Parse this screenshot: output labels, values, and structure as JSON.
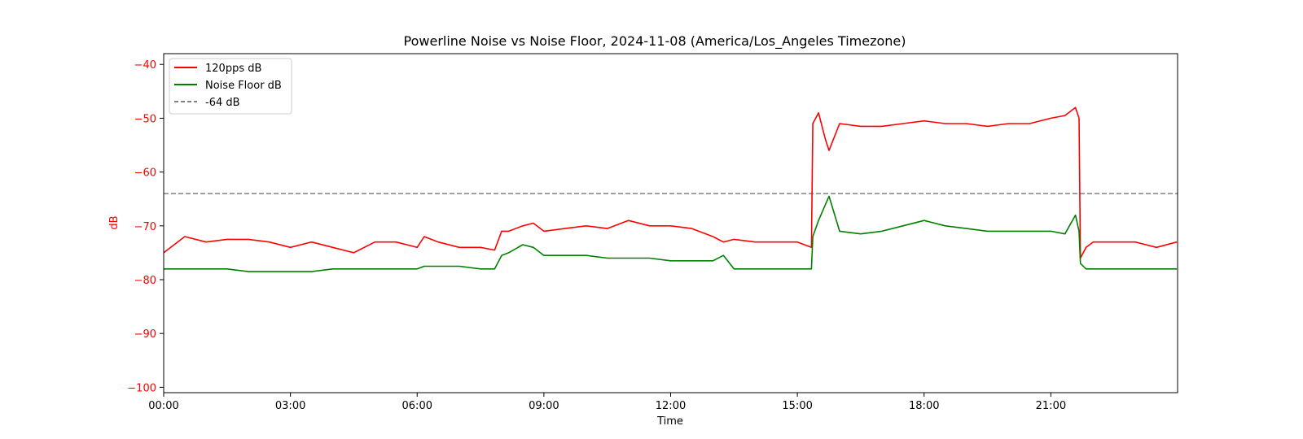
{
  "chart_data": {
    "type": "line",
    "title": "Powerline Noise vs Noise Floor, 2024-11-08 (America/Los_Angeles Timezone)",
    "xlabel": "Time",
    "ylabel": "dB",
    "xlim": [
      "00:00",
      "24:00"
    ],
    "ylim": [
      -101,
      -38
    ],
    "x_ticks": [
      "00:00",
      "03:00",
      "06:00",
      "09:00",
      "12:00",
      "15:00",
      "18:00",
      "21:00"
    ],
    "y_ticks": [
      -40,
      -50,
      -60,
      -70,
      -80,
      -90,
      -100
    ],
    "grid": false,
    "legend_position": "top-left",
    "colors": {
      "signal": "#ff0000",
      "floor": "#008000",
      "threshold": "#808080",
      "ylabel": "#ff0000"
    },
    "threshold": {
      "name": "-64 dB",
      "value": -64
    },
    "series": [
      {
        "name": "120pps dB",
        "color": "#ff0000",
        "x": [
          "00:00",
          "00:30",
          "01:00",
          "01:30",
          "02:00",
          "02:30",
          "03:00",
          "03:30",
          "04:00",
          "04:30",
          "05:00",
          "05:30",
          "06:00",
          "06:10",
          "06:30",
          "07:00",
          "07:30",
          "07:50",
          "08:00",
          "08:10",
          "08:30",
          "08:45",
          "09:00",
          "09:30",
          "10:00",
          "10:30",
          "11:00",
          "11:30",
          "12:00",
          "12:30",
          "13:00",
          "13:15",
          "13:30",
          "14:00",
          "14:30",
          "15:00",
          "15:20",
          "15:22",
          "15:30",
          "15:40",
          "15:45",
          "16:00",
          "16:30",
          "17:00",
          "17:30",
          "18:00",
          "18:30",
          "19:00",
          "19:30",
          "20:00",
          "20:30",
          "21:00",
          "21:20",
          "21:35",
          "21:40",
          "21:42",
          "21:50",
          "22:00",
          "22:30",
          "23:00",
          "23:30",
          "23:59"
        ],
        "values": [
          -75,
          -72,
          -73,
          -72.5,
          -72.5,
          -73,
          -74,
          -73,
          -74,
          -75,
          -73,
          -73,
          -74,
          -72,
          -73,
          -74,
          -74,
          -74.5,
          -71,
          -71,
          -70,
          -69.5,
          -71,
          -70.5,
          -70,
          -70.5,
          -69,
          -70,
          -70,
          -70.5,
          -72,
          -73,
          -72.5,
          -73,
          -73,
          -73,
          -74,
          -51,
          -49,
          -54,
          -56,
          -51,
          -51.5,
          -51.5,
          -51,
          -50.5,
          -51,
          -51,
          -51.5,
          -51,
          -51,
          -50,
          -49.5,
          -48,
          -50,
          -76,
          -74,
          -73,
          -73,
          -73,
          -74,
          -73
        ]
      },
      {
        "name": "Noise Floor dB",
        "color": "#008000",
        "x": [
          "00:00",
          "00:30",
          "01:00",
          "01:30",
          "02:00",
          "02:30",
          "03:00",
          "03:30",
          "04:00",
          "04:30",
          "05:00",
          "05:30",
          "06:00",
          "06:10",
          "06:30",
          "07:00",
          "07:30",
          "07:50",
          "08:00",
          "08:10",
          "08:30",
          "08:45",
          "09:00",
          "09:30",
          "10:00",
          "10:30",
          "11:00",
          "11:30",
          "12:00",
          "12:30",
          "13:00",
          "13:15",
          "13:30",
          "14:00",
          "14:30",
          "15:00",
          "15:20",
          "15:22",
          "15:30",
          "15:40",
          "15:45",
          "16:00",
          "16:30",
          "17:00",
          "17:30",
          "18:00",
          "18:30",
          "19:00",
          "19:30",
          "20:00",
          "20:30",
          "21:00",
          "21:20",
          "21:35",
          "21:40",
          "21:42",
          "21:50",
          "22:00",
          "22:30",
          "23:00",
          "23:30",
          "23:59"
        ],
        "values": [
          -78,
          -78,
          -78,
          -78,
          -78.5,
          -78.5,
          -78.5,
          -78.5,
          -78,
          -78,
          -78,
          -78,
          -78,
          -77.5,
          -77.5,
          -77.5,
          -78,
          -78,
          -75.5,
          -75,
          -73.5,
          -74,
          -75.5,
          -75.5,
          -75.5,
          -76,
          -76,
          -76,
          -76.5,
          -76.5,
          -76.5,
          -75.5,
          -78,
          -78,
          -78,
          -78,
          -78,
          -72,
          -69,
          -66,
          -64.5,
          -71,
          -71.5,
          -71,
          -70,
          -69,
          -70,
          -70.5,
          -71,
          -71,
          -71,
          -71,
          -71.5,
          -68,
          -71,
          -77,
          -78,
          -78,
          -78,
          -78,
          -78,
          -78
        ]
      }
    ]
  }
}
